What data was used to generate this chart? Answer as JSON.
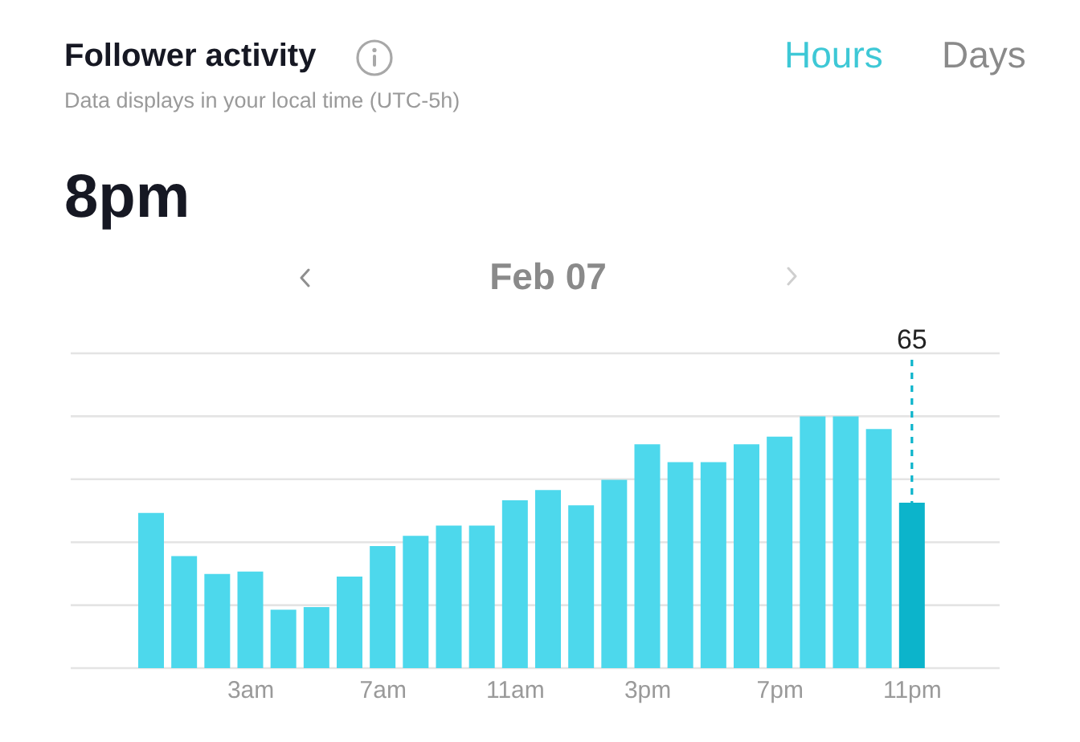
{
  "chart_data": {
    "type": "bar",
    "title": "Follower activity",
    "subtitle": "Data displays in your local time (UTC-5h)",
    "annotations": [
      "Hours",
      "Days",
      "8pm",
      "Feb 07"
    ],
    "categories": [
      null,
      null,
      null,
      "3am",
      null,
      null,
      null,
      "7am",
      null,
      null,
      null,
      "11am",
      null,
      null,
      null,
      "3pm",
      null,
      null,
      null,
      "7pm",
      null,
      null,
      null,
      "11pm"
    ],
    "values": [
      61,
      44,
      37,
      38,
      23,
      24,
      36,
      48,
      52,
      56,
      56,
      66,
      70,
      64,
      74,
      88,
      81,
      81,
      88,
      91,
      99,
      99,
      94,
      65
    ],
    "colors": [
      "#4dd8ec",
      "#4dd8ec",
      "#4dd8ec",
      "#4dd8ec",
      "#4dd8ec",
      "#4dd8ec",
      "#4dd8ec",
      "#4dd8ec",
      "#4dd8ec",
      "#4dd8ec",
      "#4dd8ec",
      "#4dd8ec",
      "#4dd8ec",
      "#4dd8ec",
      "#4dd8ec",
      "#4dd8ec",
      "#4dd8ec",
      "#4dd8ec",
      "#4dd8ec",
      "#4dd8ec",
      "#4dd8ec",
      "#4dd8ec",
      "#4dd8ec",
      "#0cb4cb"
    ],
    "value_labels": [
      null,
      null,
      null,
      null,
      null,
      null,
      null,
      null,
      null,
      null,
      null,
      null,
      null,
      null,
      null,
      null,
      null,
      null,
      null,
      null,
      null,
      null,
      null,
      "65"
    ],
    "ylim": [
      0,
      123.75
    ],
    "yticks": [
      {
        "value": 0,
        "label": null
      },
      {
        "value": 24.75,
        "label": null
      },
      {
        "value": 49.5,
        "label": null
      },
      {
        "value": 74.25,
        "label": null
      },
      {
        "value": 99,
        "label": null
      },
      {
        "value": 123.75,
        "label": null
      }
    ],
    "grid": "y",
    "tick_labels": "x"
  }
}
